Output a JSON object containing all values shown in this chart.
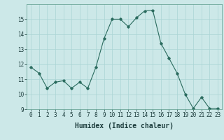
{
  "x": [
    0,
    1,
    2,
    3,
    4,
    5,
    6,
    7,
    8,
    9,
    10,
    11,
    12,
    13,
    14,
    15,
    16,
    17,
    18,
    19,
    20,
    21,
    22,
    23
  ],
  "y": [
    11.8,
    11.4,
    10.4,
    10.8,
    10.9,
    10.4,
    10.8,
    10.4,
    11.8,
    13.7,
    15.0,
    15.0,
    14.5,
    15.1,
    15.55,
    15.6,
    13.4,
    12.4,
    11.4,
    10.0,
    9.05,
    9.8,
    9.05,
    9.05
  ],
  "xlabel": "Humidex (Indice chaleur)",
  "ylim": [
    9,
    16
  ],
  "xlim": [
    -0.5,
    23.5
  ],
  "yticks": [
    9,
    10,
    11,
    12,
    13,
    14,
    15
  ],
  "xticks": [
    0,
    1,
    2,
    3,
    4,
    5,
    6,
    7,
    8,
    9,
    10,
    11,
    12,
    13,
    14,
    15,
    16,
    17,
    18,
    19,
    20,
    21,
    22,
    23
  ],
  "line_color": "#2a6b5e",
  "marker": "D",
  "marker_size": 1.8,
  "line_width": 0.8,
  "bg_color": "#cce8e8",
  "grid_color": "#aad4d4",
  "xlabel_fontsize": 7,
  "tick_fontsize": 5.5
}
